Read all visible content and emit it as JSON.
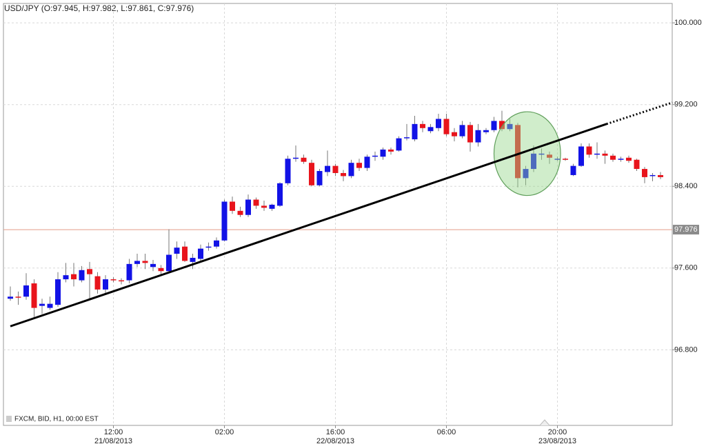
{
  "chart_data": {
    "type": "candlestick",
    "title": "USD/JPY (O:97.945, H:97.982, L:97.861, C:97.976)",
    "footer": "FXCM, BID, H1, 00:00 EST",
    "categories": [
      null,
      null,
      null,
      null,
      null,
      null,
      null,
      null,
      null,
      null,
      null,
      null,
      null,
      "12:00",
      null,
      null,
      null,
      null,
      null,
      null,
      null,
      null,
      null,
      null,
      null,
      null,
      null,
      "02:00",
      null,
      null,
      null,
      null,
      null,
      null,
      null,
      null,
      null,
      null,
      null,
      null,
      null,
      "16:00",
      null,
      null,
      null,
      null,
      null,
      null,
      null,
      null,
      null,
      null,
      null,
      null,
      null,
      "06:00",
      null,
      null,
      null,
      null,
      null,
      null,
      null,
      null,
      null,
      null,
      null,
      null,
      null,
      "20:00",
      null,
      null,
      null,
      null,
      null,
      null,
      null,
      null,
      null,
      null,
      null,
      null,
      null
    ],
    "category_dates": [
      null,
      null,
      null,
      null,
      null,
      null,
      null,
      null,
      null,
      null,
      null,
      null,
      null,
      "21/08/2013",
      null,
      null,
      null,
      null,
      null,
      null,
      null,
      null,
      null,
      null,
      null,
      null,
      null,
      null,
      null,
      null,
      null,
      null,
      null,
      null,
      null,
      null,
      null,
      null,
      null,
      null,
      null,
      "22/08/2013",
      null,
      null,
      null,
      null,
      null,
      null,
      null,
      null,
      null,
      null,
      null,
      null,
      null,
      null,
      null,
      null,
      null,
      null,
      null,
      null,
      null,
      null,
      null,
      null,
      null,
      null,
      null,
      "23/08/2013",
      null,
      null,
      null,
      null,
      null,
      null,
      null,
      null,
      null,
      null,
      null,
      null,
      null
    ],
    "open": [
      97.3,
      97.32,
      97.32,
      97.45,
      97.23,
      97.21,
      97.24,
      97.49,
      97.54,
      97.48,
      97.59,
      97.52,
      97.39,
      97.49,
      97.48,
      97.48,
      97.64,
      97.67,
      97.61,
      97.6,
      97.57,
      97.74,
      97.81,
      97.66,
      97.69,
      97.8,
      97.81,
      97.87,
      98.25,
      98.16,
      98.12,
      98.27,
      98.21,
      98.18,
      98.21,
      98.43,
      98.67,
      98.68,
      98.63,
      98.41,
      98.54,
      98.6,
      98.53,
      98.5,
      98.63,
      98.58,
      98.69,
      98.69,
      98.76,
      98.75,
      98.87,
      98.86,
      99.01,
      98.94,
      98.97,
      99.06,
      98.93,
      98.89,
      99.0,
      98.83,
      98.93,
      98.95,
      99.04,
      98.96,
      99.0,
      98.48,
      98.57,
      98.71,
      98.71,
      98.67,
      98.67,
      98.51,
      98.6,
      98.79,
      98.71,
      98.72,
      98.7,
      98.66,
      98.68,
      98.66,
      98.57,
      98.5,
      98.51
    ],
    "high": [
      97.42,
      97.37,
      97.55,
      97.49,
      97.3,
      97.32,
      97.56,
      97.65,
      97.65,
      97.62,
      97.66,
      97.56,
      97.53,
      97.51,
      97.5,
      97.69,
      97.74,
      97.74,
      97.68,
      97.63,
      97.98,
      97.86,
      97.86,
      97.74,
      97.83,
      97.85,
      97.9,
      98.27,
      98.3,
      98.2,
      98.32,
      98.29,
      98.26,
      98.23,
      98.44,
      98.7,
      98.8,
      98.71,
      98.66,
      98.57,
      98.75,
      98.62,
      98.56,
      98.66,
      98.67,
      98.71,
      98.74,
      98.78,
      98.78,
      98.89,
      99.01,
      99.09,
      99.04,
      99.01,
      99.11,
      99.11,
      98.97,
      99.04,
      99.03,
      99.01,
      98.97,
      99.08,
      99.14,
      99.06,
      99.02,
      98.6,
      98.8,
      98.77,
      98.74,
      98.69,
      98.68,
      98.62,
      98.82,
      98.82,
      98.83,
      98.75,
      98.72,
      98.69,
      98.7,
      98.67,
      98.59,
      98.53,
      98.54
    ],
    "low": [
      97.28,
      97.24,
      97.29,
      97.12,
      97.15,
      97.19,
      97.22,
      97.46,
      97.42,
      97.46,
      97.29,
      97.35,
      97.35,
      97.46,
      97.44,
      97.45,
      97.61,
      97.59,
      97.57,
      97.54,
      97.56,
      97.69,
      97.66,
      97.59,
      97.66,
      97.77,
      97.79,
      97.86,
      98.13,
      98.1,
      98.1,
      98.18,
      98.16,
      98.16,
      98.2,
      98.41,
      98.64,
      98.62,
      98.4,
      98.4,
      98.5,
      98.5,
      98.45,
      98.48,
      98.55,
      98.55,
      98.65,
      98.66,
      98.71,
      98.74,
      98.85,
      98.84,
      98.93,
      98.92,
      98.94,
      98.89,
      98.84,
      98.87,
      98.74,
      98.79,
      98.91,
      98.93,
      98.94,
      98.94,
      98.39,
      98.41,
      98.54,
      98.66,
      98.62,
      98.65,
      98.65,
      98.5,
      98.59,
      98.68,
      98.67,
      98.62,
      98.64,
      98.64,
      98.63,
      98.55,
      98.43,
      98.45,
      98.47
    ],
    "close": [
      97.32,
      97.31,
      97.43,
      97.21,
      97.25,
      97.25,
      97.49,
      97.53,
      97.49,
      97.58,
      97.54,
      97.39,
      97.49,
      97.48,
      97.47,
      97.64,
      97.67,
      97.65,
      97.64,
      97.57,
      97.73,
      97.8,
      97.67,
      97.7,
      97.79,
      97.81,
      97.87,
      98.25,
      98.16,
      98.12,
      98.27,
      98.21,
      98.19,
      98.22,
      98.43,
      98.67,
      98.68,
      98.64,
      98.41,
      98.55,
      98.6,
      98.53,
      98.5,
      98.63,
      98.58,
      98.69,
      98.7,
      98.76,
      98.74,
      98.87,
      98.88,
      99.01,
      98.97,
      98.98,
      99.06,
      98.91,
      98.89,
      99.0,
      98.83,
      98.95,
      98.95,
      99.04,
      98.96,
      99.01,
      98.48,
      98.57,
      98.72,
      98.72,
      98.68,
      98.67,
      98.66,
      98.6,
      98.79,
      98.71,
      98.72,
      98.7,
      98.66,
      98.67,
      98.65,
      98.57,
      98.49,
      98.51,
      98.49
    ],
    "up_color": "#1212e6",
    "down_color": "#e8141c",
    "ylim": [
      96.06,
      100.19
    ],
    "yticks": [
      {
        "value": 100,
        "label": "100.000"
      },
      {
        "value": 99.2,
        "label": "99.200"
      },
      {
        "value": 98.4,
        "label": "98.400"
      },
      {
        "value": 97.6,
        "label": "97.600"
      },
      {
        "value": 96.8,
        "label": "96.800"
      }
    ],
    "grid": true,
    "price_line": 97.976,
    "price_line_color": "#e39a86",
    "trendline": {
      "x": [
        0,
        75.2
      ],
      "values": [
        97.03,
        99.01
      ],
      "extension_x": [
        75.2,
        83.5
      ],
      "extension_values": [
        99.01,
        99.22
      ],
      "color": "#000000"
    },
    "highlight": {
      "x": 65.2,
      "y": 98.72,
      "x_radius": 4.2,
      "y_radius": 0.41,
      "fill": "rgba(150,215,140,0.45)",
      "stroke": "#5f9e5a"
    }
  }
}
